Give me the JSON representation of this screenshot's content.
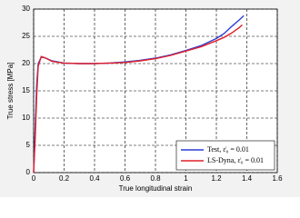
{
  "chart_data": {
    "type": "line",
    "xlabel": "True longitudinal strain",
    "ylabel": "True stress [MPa]",
    "xlim": [
      0,
      1.6
    ],
    "xticks": [
      0,
      0.2,
      0.4,
      0.6,
      0.8,
      1,
      1.2,
      1.4,
      1.6
    ],
    "ylim": [
      0,
      30
    ],
    "yticks": [
      0,
      5,
      10,
      15,
      20,
      25,
      30
    ],
    "grid": true,
    "legend": "lower right",
    "series": [
      {
        "name": "Test, ε̇₀ = 0.01",
        "color": "#2b3fd6",
        "x": [
          0,
          0.01,
          0.02,
          0.03,
          0.05,
          0.08,
          0.12,
          0.2,
          0.3,
          0.4,
          0.5,
          0.6,
          0.7,
          0.8,
          0.9,
          1.0,
          1.1,
          1.2,
          1.25,
          1.3,
          1.35,
          1.38
        ],
        "values": [
          0,
          8,
          16,
          20,
          21.2,
          21,
          20.5,
          20.1,
          20.0,
          20.0,
          20.1,
          20.3,
          20.6,
          21.0,
          21.6,
          22.4,
          23.3,
          24.6,
          25.5,
          26.8,
          28,
          28.8
        ]
      },
      {
        "name": "LS-Dyna, ε̇₀ = 0.01",
        "color": "#e0202a",
        "x": [
          0,
          0.01,
          0.02,
          0.03,
          0.05,
          0.08,
          0.12,
          0.2,
          0.3,
          0.4,
          0.5,
          0.6,
          0.7,
          0.8,
          0.9,
          1.0,
          1.1,
          1.2,
          1.25,
          1.3,
          1.35,
          1.37
        ],
        "values": [
          0,
          6,
          14,
          19.5,
          21.3,
          21,
          20.4,
          20.1,
          20.0,
          20.0,
          20.1,
          20.2,
          20.5,
          20.9,
          21.5,
          22.3,
          23.1,
          24.2,
          24.8,
          25.6,
          26.6,
          27.1
        ]
      }
    ]
  }
}
